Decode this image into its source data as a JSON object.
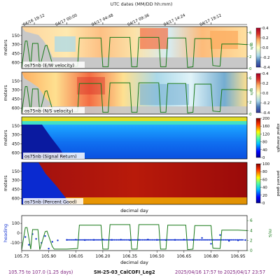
{
  "top_axis": {
    "title": "UTC dates (MM/DD hh:mm)",
    "ticks": [
      {
        "x": 105.82,
        "label": "04/16 19:12"
      },
      {
        "x": 106.0,
        "label": "04/17 00:00"
      },
      {
        "x": 106.2,
        "label": "04/17 04:48"
      },
      {
        "x": 106.4,
        "label": "04/17 09:36"
      },
      {
        "x": 106.6,
        "label": "04/17 14:24"
      },
      {
        "x": 106.8,
        "label": "04/17 19:12"
      }
    ]
  },
  "footer": {
    "left": "105.75 to 107.0 (1.25 days)",
    "middle": "SH-25-03_CalCOFI_Leg2",
    "right": "2025/04/16 17:57 to 2025/04/17 23:57"
  },
  "colors": {
    "speed_line": "#1a7a1a",
    "heading_points": "#1030d0",
    "bad_data": "#c8c8c8",
    "panel_label_bg": "#ffffff"
  },
  "chart_data": [
    {
      "type": "heatmap",
      "label": "os75nb (E/W velocity)",
      "ylabel": "meters",
      "y_ticks": [
        150,
        300,
        450,
        600
      ],
      "colorbar": {
        "ticks": [
          "0.4",
          "0.2",
          "0.0",
          "-0.2",
          "-0.4"
        ],
        "range": [
          -0.4,
          0.4
        ],
        "colormap": "RdYlBu_r"
      },
      "right_axis": {
        "label": "m/s",
        "ticks": [
          "6",
          "4",
          "2",
          "0"
        ]
      },
      "overlay": "ship speed (green line)"
    },
    {
      "type": "heatmap",
      "label": "os75nb (N/S velocity)",
      "ylabel": "meters",
      "y_ticks": [
        150,
        300,
        450,
        600
      ],
      "colorbar": {
        "ticks": [
          "0.4",
          "0.2",
          "0.0",
          "-0.2",
          "-0.4"
        ],
        "range": [
          -0.4,
          0.4
        ],
        "colormap": "RdYlBu_r"
      },
      "right_axis": {
        "label": "m/s",
        "ticks": [
          "6",
          "4",
          "2",
          "0"
        ]
      },
      "overlay": "ship speed (green line)"
    },
    {
      "type": "heatmap",
      "label": "os75nb (Signal Return)",
      "ylabel": "meters",
      "y_ticks": [
        150,
        300,
        450,
        600
      ],
      "colorbar": {
        "ticks": [
          "200",
          "160",
          "120",
          "80",
          "40",
          "0"
        ],
        "range": [
          0,
          200
        ],
        "label": "signal strength",
        "colormap": "jet"
      }
    },
    {
      "type": "heatmap",
      "label": "os75nb (Percent Good)",
      "ylabel": "meters",
      "y_ticks": [
        150,
        300,
        450,
        600
      ],
      "colorbar": {
        "ticks": [
          "100",
          "80",
          "60",
          "40",
          "20",
          "0"
        ],
        "range": [
          0,
          100
        ],
        "label": "percent good",
        "colormap": "jet"
      }
    },
    {
      "type": "scatter",
      "ylabel": "heading",
      "y_ticks": [
        100,
        0,
        -100
      ],
      "ylim": [
        -180,
        180
      ],
      "right_axis": {
        "label": "m/s",
        "ticks": [
          "6",
          "4",
          "2",
          "0"
        ]
      },
      "xlabel": "decimal day",
      "x_ticks": [
        "105.75",
        "105.90",
        "106.05",
        "106.20",
        "106.35",
        "106.50",
        "106.65",
        "106.80",
        "106.95"
      ],
      "xlim": [
        105.75,
        107.0
      ],
      "series": [
        {
          "name": "heading",
          "style": "blue dots",
          "x": [
            105.77,
            105.79,
            105.81,
            105.83,
            105.86,
            105.88,
            105.9,
            105.92,
            105.95,
            106.0,
            106.05,
            106.1,
            106.15,
            106.2,
            106.25,
            106.3,
            106.35,
            106.4,
            106.45,
            106.5,
            106.55,
            106.6,
            106.65,
            106.7,
            106.75,
            106.8,
            106.85,
            106.9,
            106.95,
            106.99
          ],
          "y": [
            -40,
            -120,
            -10,
            -60,
            -100,
            -30,
            -160,
            -90,
            -75,
            -70,
            -68,
            -72,
            -70,
            -66,
            -70,
            -68,
            -72,
            -70,
            -66,
            -70,
            -72,
            -70,
            -68,
            -70,
            -50,
            -110,
            -20,
            -80,
            -75,
            -72
          ]
        },
        {
          "name": "ship speed",
          "style": "green line",
          "x": [
            105.75,
            105.77,
            105.78,
            105.8,
            105.81,
            105.84,
            105.85,
            105.88,
            105.89,
            105.92,
            105.93,
            106.0,
            106.06,
            106.07,
            106.19,
            106.2,
            106.23,
            106.24,
            106.35,
            106.36,
            106.39,
            106.4,
            106.51,
            106.52,
            106.55,
            106.56,
            106.66,
            106.67,
            106.7,
            106.71,
            106.8,
            106.81,
            106.85,
            106.86,
            106.95,
            107.0
          ],
          "y": [
            0.2,
            4.6,
            4.6,
            0.3,
            4.2,
            4.2,
            0.2,
            3.8,
            3.9,
            0.8,
            0.3,
            0.3,
            0.4,
            5.1,
            5.1,
            0.3,
            0.3,
            5.2,
            5.2,
            0.3,
            0.3,
            5.2,
            5.2,
            0.3,
            0.3,
            5.1,
            5.1,
            0.2,
            0.3,
            5.0,
            5.0,
            0.5,
            0.4,
            4.1,
            4.1,
            4.0
          ]
        }
      ]
    }
  ]
}
